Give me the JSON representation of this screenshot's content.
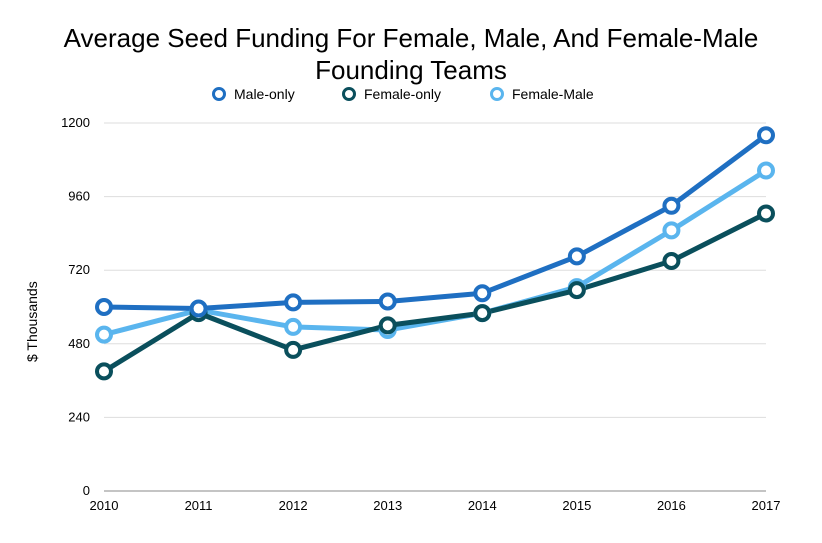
{
  "chart_data": {
    "type": "line",
    "title": "Average Seed Funding For Female, Male, And Female-Male Founding Teams",
    "ylabel": "$ Thousands",
    "xlabel": "",
    "x": [
      "2010",
      "2011",
      "2012",
      "2013",
      "2014",
      "2015",
      "2016",
      "2017"
    ],
    "ylim": [
      0,
      1200
    ],
    "yticks": [
      0,
      240,
      480,
      720,
      960,
      1200
    ],
    "grid": true,
    "legend_position": "top",
    "series": [
      {
        "name": "Male-only",
        "color": "#1f6fc2",
        "values": [
          600,
          595,
          615,
          618,
          645,
          765,
          930,
          1160
        ]
      },
      {
        "name": "Female-only",
        "color": "#0a4f5c",
        "values": [
          390,
          580,
          460,
          540,
          580,
          655,
          750,
          905
        ]
      },
      {
        "name": "Female-Male",
        "color": "#5ab5ee",
        "values": [
          510,
          590,
          535,
          525,
          580,
          665,
          850,
          1045
        ]
      }
    ]
  }
}
